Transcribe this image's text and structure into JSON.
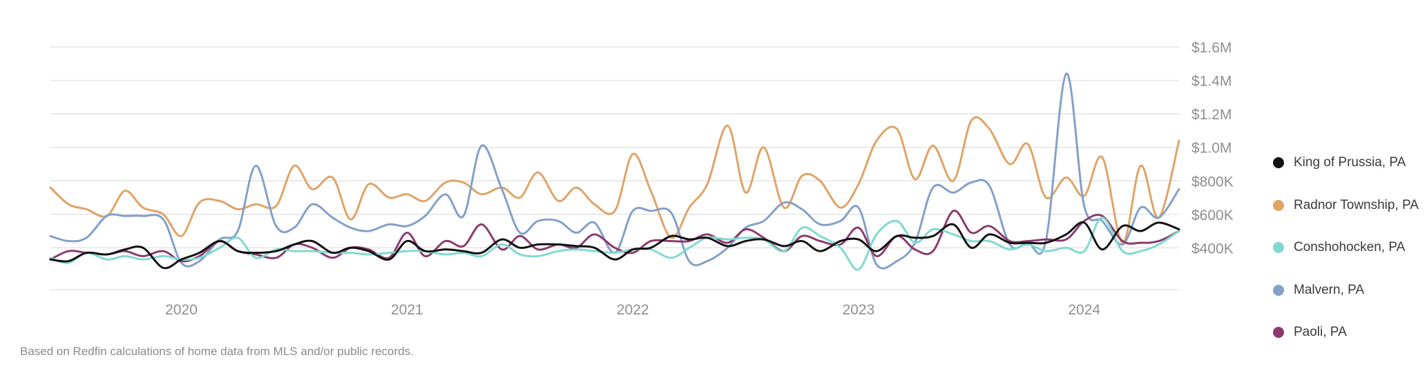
{
  "chart_data": {
    "type": "line",
    "title": "",
    "xlabel": "",
    "ylabel": "",
    "ylim": [
      150000,
      1600000
    ],
    "xlim": [
      2019.42,
      2024.42
    ],
    "y_ticks": [
      400000,
      600000,
      800000,
      1000000,
      1200000,
      1400000,
      1600000
    ],
    "y_tick_labels": [
      "$400K",
      "$600K",
      "$800K",
      "$1.0M",
      "$1.2M",
      "$1.4M",
      "$1.6M"
    ],
    "x_ticks": [
      2020,
      2021,
      2022,
      2023,
      2024
    ],
    "x_tick_labels": [
      "2020",
      "2021",
      "2022",
      "2023",
      "2024"
    ],
    "grid": true,
    "legend_position": "right",
    "series": [
      {
        "name": "Radnor Township, PA",
        "color": "#e0a366",
        "x": [
          2019.42,
          2019.5,
          2019.58,
          2019.67,
          2019.75,
          2019.83,
          2019.92,
          2020.0,
          2020.08,
          2020.17,
          2020.25,
          2020.33,
          2020.42,
          2020.5,
          2020.58,
          2020.67,
          2020.75,
          2020.83,
          2020.92,
          2021.0,
          2021.08,
          2021.17,
          2021.25,
          2021.33,
          2021.42,
          2021.5,
          2021.58,
          2021.67,
          2021.75,
          2021.83,
          2021.92,
          2022.0,
          2022.08,
          2022.17,
          2022.25,
          2022.33,
          2022.42,
          2022.5,
          2022.58,
          2022.67,
          2022.75,
          2022.83,
          2022.92,
          2023.0,
          2023.08,
          2023.17,
          2023.25,
          2023.33,
          2023.42,
          2023.5,
          2023.58,
          2023.67,
          2023.75,
          2023.83,
          2023.92,
          2024.0,
          2024.08,
          2024.17,
          2024.25,
          2024.33,
          2024.42
        ],
        "values": [
          760000,
          660000,
          630000,
          590000,
          740000,
          640000,
          600000,
          470000,
          670000,
          680000,
          630000,
          660000,
          650000,
          890000,
          750000,
          820000,
          570000,
          780000,
          700000,
          720000,
          680000,
          790000,
          790000,
          720000,
          760000,
          700000,
          850000,
          680000,
          760000,
          660000,
          620000,
          960000,
          740000,
          460000,
          640000,
          780000,
          1130000,
          730000,
          1000000,
          640000,
          830000,
          800000,
          640000,
          780000,
          1040000,
          1110000,
          810000,
          1010000,
          800000,
          1160000,
          1110000,
          900000,
          1020000,
          700000,
          820000,
          710000,
          940000,
          430000,
          890000,
          580000,
          1040000
        ]
      },
      {
        "name": "Malvern, PA",
        "color": "#82a0c9",
        "x": [
          2019.42,
          2019.5,
          2019.58,
          2019.67,
          2019.75,
          2019.83,
          2019.92,
          2020.0,
          2020.08,
          2020.17,
          2020.25,
          2020.33,
          2020.42,
          2020.5,
          2020.58,
          2020.67,
          2020.75,
          2020.83,
          2020.92,
          2021.0,
          2021.08,
          2021.17,
          2021.25,
          2021.33,
          2021.42,
          2021.5,
          2021.58,
          2021.67,
          2021.75,
          2021.83,
          2021.92,
          2022.0,
          2022.08,
          2022.17,
          2022.25,
          2022.33,
          2022.42,
          2022.5,
          2022.58,
          2022.67,
          2022.75,
          2022.83,
          2022.92,
          2023.0,
          2023.08,
          2023.17,
          2023.25,
          2023.33,
          2023.42,
          2023.5,
          2023.58,
          2023.67,
          2023.75,
          2023.83,
          2023.92,
          2024.0,
          2024.08,
          2024.17,
          2024.25,
          2024.33,
          2024.42
        ],
        "values": [
          470000,
          440000,
          460000,
          590000,
          590000,
          590000,
          570000,
          310000,
          320000,
          450000,
          500000,
          890000,
          530000,
          520000,
          660000,
          580000,
          520000,
          500000,
          540000,
          530000,
          590000,
          720000,
          590000,
          1010000,
          750000,
          490000,
          560000,
          560000,
          490000,
          550000,
          370000,
          620000,
          620000,
          610000,
          320000,
          320000,
          400000,
          520000,
          560000,
          670000,
          630000,
          540000,
          560000,
          640000,
          300000,
          320000,
          430000,
          760000,
          730000,
          790000,
          770000,
          420000,
          430000,
          440000,
          1440000,
          650000,
          560000,
          420000,
          640000,
          580000,
          750000
        ]
      },
      {
        "name": "Paoli, PA",
        "color": "#8c3a6e",
        "x": [
          2019.42,
          2019.5,
          2019.58,
          2019.67,
          2019.75,
          2019.83,
          2019.92,
          2020.0,
          2020.08,
          2020.17,
          2020.25,
          2020.33,
          2020.42,
          2020.5,
          2020.58,
          2020.67,
          2020.75,
          2020.83,
          2020.92,
          2021.0,
          2021.08,
          2021.17,
          2021.25,
          2021.33,
          2021.42,
          2021.5,
          2021.58,
          2021.67,
          2021.75,
          2021.83,
          2021.92,
          2022.0,
          2022.08,
          2022.17,
          2022.25,
          2022.33,
          2022.42,
          2022.5,
          2022.58,
          2022.67,
          2022.75,
          2022.83,
          2022.92,
          2023.0,
          2023.08,
          2023.17,
          2023.25,
          2023.33,
          2023.42,
          2023.5,
          2023.58,
          2023.67,
          2023.75,
          2023.83,
          2023.92,
          2024.0,
          2024.08,
          2024.17,
          2024.25,
          2024.33,
          2024.42
        ],
        "values": [
          330000,
          380000,
          370000,
          360000,
          380000,
          350000,
          380000,
          320000,
          350000,
          440000,
          380000,
          360000,
          340000,
          420000,
          400000,
          340000,
          400000,
          390000,
          340000,
          490000,
          350000,
          440000,
          410000,
          540000,
          390000,
          470000,
          390000,
          420000,
          400000,
          480000,
          400000,
          370000,
          440000,
          440000,
          440000,
          480000,
          430000,
          510000,
          460000,
          380000,
          470000,
          440000,
          420000,
          520000,
          350000,
          470000,
          390000,
          380000,
          620000,
          490000,
          530000,
          440000,
          440000,
          450000,
          450000,
          560000,
          590000,
          440000,
          430000,
          440000,
          500000
        ]
      },
      {
        "name": "Conshohocken, PA",
        "color": "#7fdad0",
        "x": [
          2019.42,
          2019.5,
          2019.58,
          2019.67,
          2019.75,
          2019.83,
          2019.92,
          2020.0,
          2020.08,
          2020.17,
          2020.25,
          2020.33,
          2020.42,
          2020.5,
          2020.58,
          2020.67,
          2020.75,
          2020.83,
          2020.92,
          2021.0,
          2021.08,
          2021.17,
          2021.25,
          2021.33,
          2021.42,
          2021.5,
          2021.58,
          2021.67,
          2021.75,
          2021.83,
          2021.92,
          2022.0,
          2022.08,
          2022.17,
          2022.25,
          2022.33,
          2022.42,
          2022.5,
          2022.58,
          2022.67,
          2022.75,
          2022.83,
          2022.92,
          2023.0,
          2023.08,
          2023.17,
          2023.25,
          2023.33,
          2023.42,
          2023.5,
          2023.58,
          2023.67,
          2023.75,
          2023.83,
          2023.92,
          2024.0,
          2024.08,
          2024.17,
          2024.25,
          2024.33,
          2024.42
        ],
        "values": [
          340000,
          310000,
          370000,
          330000,
          350000,
          330000,
          350000,
          330000,
          340000,
          400000,
          460000,
          340000,
          390000,
          380000,
          380000,
          370000,
          370000,
          360000,
          370000,
          380000,
          380000,
          360000,
          370000,
          350000,
          420000,
          360000,
          350000,
          380000,
          390000,
          380000,
          370000,
          390000,
          390000,
          340000,
          400000,
          460000,
          450000,
          460000,
          450000,
          380000,
          520000,
          470000,
          400000,
          270000,
          480000,
          560000,
          430000,
          510000,
          480000,
          440000,
          440000,
          390000,
          420000,
          380000,
          400000,
          380000,
          580000,
          380000,
          380000,
          420000,
          500000
        ]
      },
      {
        "name": "King of Prussia, PA",
        "color": "#111111",
        "x": [
          2019.42,
          2019.5,
          2019.58,
          2019.67,
          2019.75,
          2019.83,
          2019.92,
          2020.0,
          2020.08,
          2020.17,
          2020.25,
          2020.33,
          2020.42,
          2020.5,
          2020.58,
          2020.67,
          2020.75,
          2020.83,
          2020.92,
          2021.0,
          2021.08,
          2021.17,
          2021.25,
          2021.33,
          2021.42,
          2021.5,
          2021.58,
          2021.67,
          2021.75,
          2021.83,
          2021.92,
          2022.0,
          2022.08,
          2022.17,
          2022.25,
          2022.33,
          2022.42,
          2022.5,
          2022.58,
          2022.67,
          2022.75,
          2022.83,
          2022.92,
          2023.0,
          2023.08,
          2023.17,
          2023.25,
          2023.33,
          2023.42,
          2023.5,
          2023.58,
          2023.67,
          2023.75,
          2023.83,
          2023.92,
          2024.0,
          2024.08,
          2024.17,
          2024.25,
          2024.33,
          2024.42
        ],
        "values": [
          330000,
          320000,
          370000,
          360000,
          390000,
          400000,
          280000,
          330000,
          370000,
          440000,
          380000,
          370000,
          380000,
          420000,
          440000,
          370000,
          400000,
          380000,
          330000,
          440000,
          380000,
          390000,
          380000,
          370000,
          450000,
          400000,
          420000,
          420000,
          410000,
          400000,
          330000,
          390000,
          400000,
          470000,
          450000,
          460000,
          410000,
          440000,
          450000,
          410000,
          440000,
          380000,
          440000,
          450000,
          380000,
          470000,
          460000,
          470000,
          540000,
          400000,
          480000,
          430000,
          430000,
          430000,
          480000,
          550000,
          390000,
          530000,
          500000,
          550000,
          510000
        ]
      }
    ]
  },
  "legend": {
    "items": [
      {
        "label": "King of Prussia, PA",
        "color": "#111111"
      },
      {
        "label": "Radnor Township, PA",
        "color": "#e0a366"
      },
      {
        "label": "Conshohocken, PA",
        "color": "#7fdad0"
      },
      {
        "label": "Malvern, PA",
        "color": "#82a0c9"
      },
      {
        "label": "Paoli, PA",
        "color": "#8c3a6e"
      }
    ]
  },
  "footnote": "Based on Redfin calculations of home data from MLS and/or public records."
}
